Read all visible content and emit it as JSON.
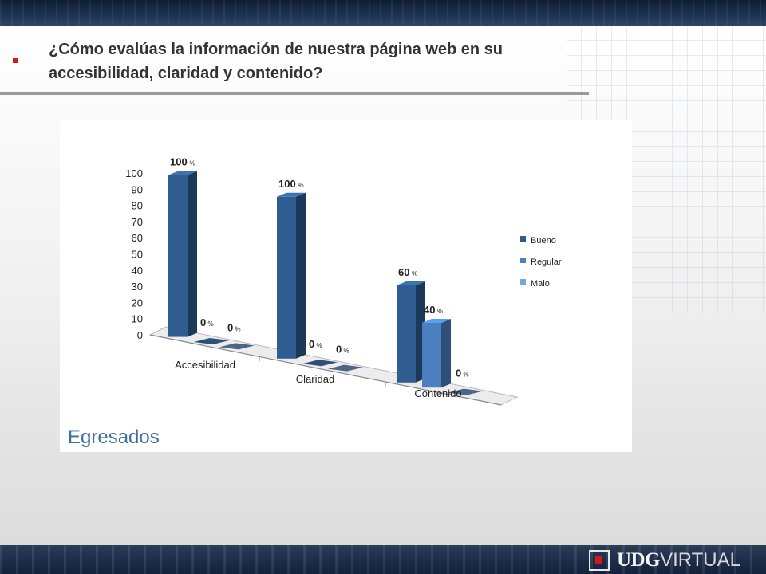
{
  "slide": {
    "title": "¿Cómo evalúas la información de nuestra página web en su accesibilidad, claridad y contenido?"
  },
  "panel": {
    "caption": "Egresados"
  },
  "logo": {
    "brand": "UDG",
    "suffix": "VIRTUAL"
  },
  "colors": {
    "bullet": "#d31a1a",
    "caption": "#3b6fa0"
  },
  "chart_data": {
    "type": "bar",
    "title": "",
    "xlabel": "",
    "ylabel": "",
    "ylim": [
      0,
      100
    ],
    "yticks": [
      0,
      10,
      20,
      30,
      40,
      50,
      60,
      70,
      80,
      90,
      100
    ],
    "categories": [
      "Accesibilidad",
      "Claridad",
      "Contenido"
    ],
    "value_suffix": "%",
    "series": [
      {
        "name": "Bueno",
        "color": "#2f5c91",
        "values": [
          100,
          100,
          60
        ]
      },
      {
        "name": "Regular",
        "color": "#4a7fc0",
        "values": [
          0,
          0,
          40
        ]
      },
      {
        "name": "Malo",
        "color": "#7aa5d6",
        "values": [
          0,
          0,
          0
        ]
      }
    ],
    "legend": "right",
    "style": "3d-bar",
    "grid": false
  }
}
